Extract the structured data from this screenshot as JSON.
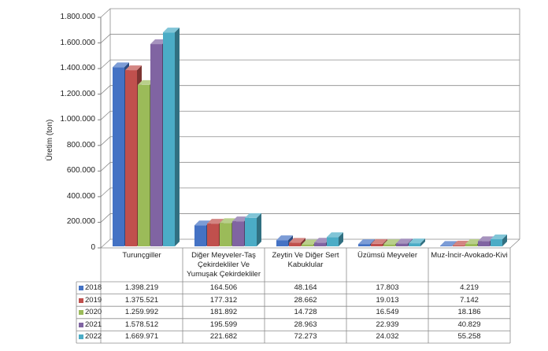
{
  "chart_data": {
    "type": "bar",
    "style": "3d-clustered-column-with-data-table",
    "ylabel": "Üretim (ton)",
    "ylim": [
      0,
      1800000
    ],
    "yticks": [
      0,
      200000,
      400000,
      600000,
      800000,
      1000000,
      1200000,
      1400000,
      1600000,
      1800000
    ],
    "grid": true,
    "legend": "data-table-left",
    "categories": [
      "Turunçgiller",
      "Diğer Meyveler-Taş\nÇekirdekliler Ve\nYumuşak Çekirdekliler",
      "Zeytin Ve Diğer Sert\nKabuklular",
      "Üzümsü Meyveler",
      "Muz-İncir-Avokado-Kivi"
    ],
    "series": [
      {
        "name": "2018",
        "color": "#4472C4",
        "values": [
          1398219,
          164506,
          48164,
          17803,
          4219
        ]
      },
      {
        "name": "2019",
        "color": "#C0504D",
        "values": [
          1375521,
          177312,
          28662,
          19013,
          7142
        ]
      },
      {
        "name": "2020",
        "color": "#9BBB59",
        "values": [
          1259992,
          181892,
          14728,
          16549,
          18186
        ]
      },
      {
        "name": "2021",
        "color": "#8064A2",
        "values": [
          1578512,
          195599,
          28963,
          22939,
          40829
        ]
      },
      {
        "name": "2022",
        "color": "#4BACC6",
        "values": [
          1669971,
          221682,
          72273,
          24032,
          55258
        ]
      }
    ]
  }
}
